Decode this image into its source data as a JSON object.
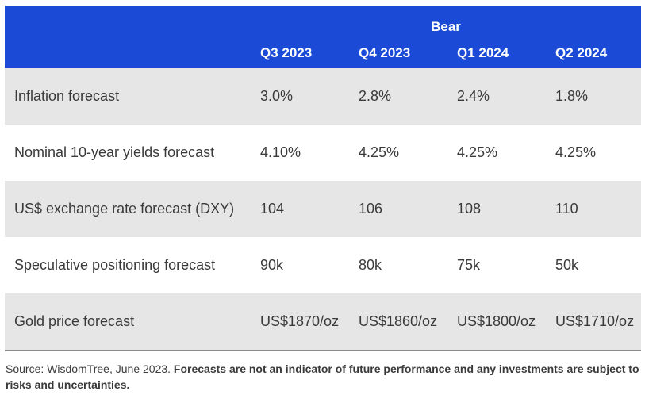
{
  "chart_data": {
    "type": "table",
    "group_header": "Bear",
    "columns": [
      "Q3 2023",
      "Q4 2023",
      "Q1 2024",
      "Q2 2024"
    ],
    "rows": [
      {
        "label": "Inflation forecast",
        "values": [
          "3.0%",
          "2.8%",
          "2.4%",
          "1.8%"
        ]
      },
      {
        "label": "Nominal 10-year yields forecast",
        "values": [
          "4.10%",
          "4.25%",
          "4.25%",
          "4.25%"
        ]
      },
      {
        "label": "US$ exchange rate forecast (DXY)",
        "values": [
          "104",
          "106",
          "108",
          "110"
        ]
      },
      {
        "label": "Speculative positioning forecast",
        "values": [
          "90k",
          "80k",
          "75k",
          "50k"
        ]
      },
      {
        "label": "Gold price forecast",
        "values": [
          "US$1870/oz",
          "US$1860/oz",
          "US$1800/oz",
          "US$1710/oz"
        ]
      }
    ]
  },
  "footnote": {
    "source": "Source: WisdomTree, June 2023. ",
    "disclaimer": "Forecasts are not an indicator of future performance and any investments are subject to risks and uncertainties."
  },
  "colors": {
    "header_bg": "#1b4bd6",
    "header_text": "#ffffff",
    "shaded_row": "#e6e6e6",
    "body_text": "#3a3a3a"
  }
}
